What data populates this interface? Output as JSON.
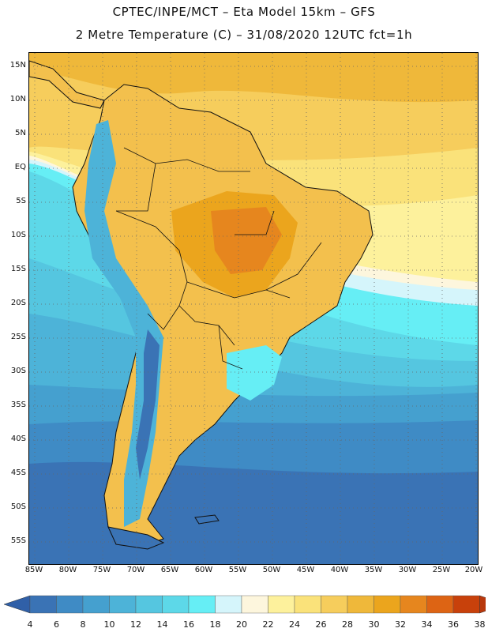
{
  "header": {
    "line1": "CPTEC/INPE/MCT –   Eta Model 15km – GFS",
    "line2": "2 Metre Temperature (C) – 31/08/2020 12UTC fct=1h"
  },
  "map": {
    "lat_labels": [
      "15N",
      "10N",
      "5N",
      "EQ",
      "5S",
      "10S",
      "15S",
      "20S",
      "25S",
      "30S",
      "35S",
      "40S",
      "45S",
      "50S",
      "55S"
    ],
    "lon_labels": [
      "85W",
      "80W",
      "75W",
      "70W",
      "65W",
      "60W",
      "55W",
      "50W",
      "45W",
      "40W",
      "35W",
      "30W",
      "25W",
      "20W"
    ]
  },
  "colorbar": {
    "labels": [
      "4",
      "6",
      "8",
      "10",
      "12",
      "14",
      "16",
      "18",
      "20",
      "22",
      "24",
      "26",
      "28",
      "30",
      "32",
      "34",
      "36",
      "38"
    ],
    "colors": [
      "#3a73b5",
      "#3f8bc5",
      "#45a0cf",
      "#4db3d8",
      "#55c6e0",
      "#5dd8e8",
      "#66eef5",
      "#d5f5fb",
      "#fdf6dd",
      "#fdf19c",
      "#fae27a",
      "#f6cd5c",
      "#efb83a",
      "#eba51d",
      "#e6861e",
      "#dd6414",
      "#c8410b"
    ],
    "under_color": "#3060a8",
    "over_color": "#b8380c"
  }
}
